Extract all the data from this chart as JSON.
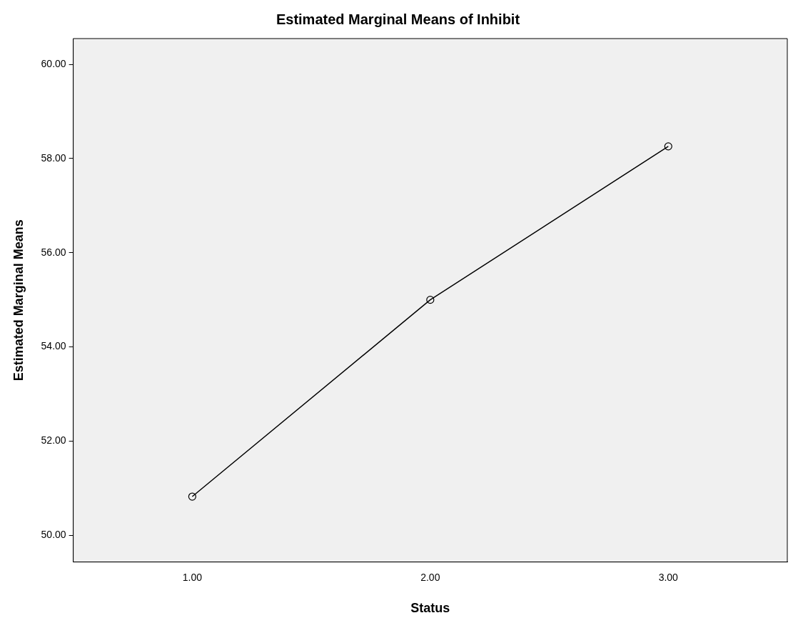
{
  "chart_data": {
    "type": "line",
    "title": "Estimated Marginal Means of Inhibit",
    "xlabel": "Status",
    "ylabel": "Estimated Marginal Means",
    "categories": [
      "1.00",
      "2.00",
      "3.00"
    ],
    "series": [
      {
        "color": "#000000",
        "values": [
          50.82,
          55.0,
          58.26
        ]
      }
    ],
    "ylim": [
      49.43,
      60.55
    ],
    "yticks": [
      {
        "value": 50,
        "label": "50.00"
      },
      {
        "value": 52,
        "label": "52.00"
      },
      {
        "value": 54,
        "label": "54.00"
      },
      {
        "value": 56,
        "label": "56.00"
      },
      {
        "value": 58,
        "label": "58.00"
      },
      {
        "value": 60,
        "label": "60.00"
      }
    ],
    "grid": false,
    "legend": false,
    "marker": "circle",
    "line_style": "solid"
  }
}
